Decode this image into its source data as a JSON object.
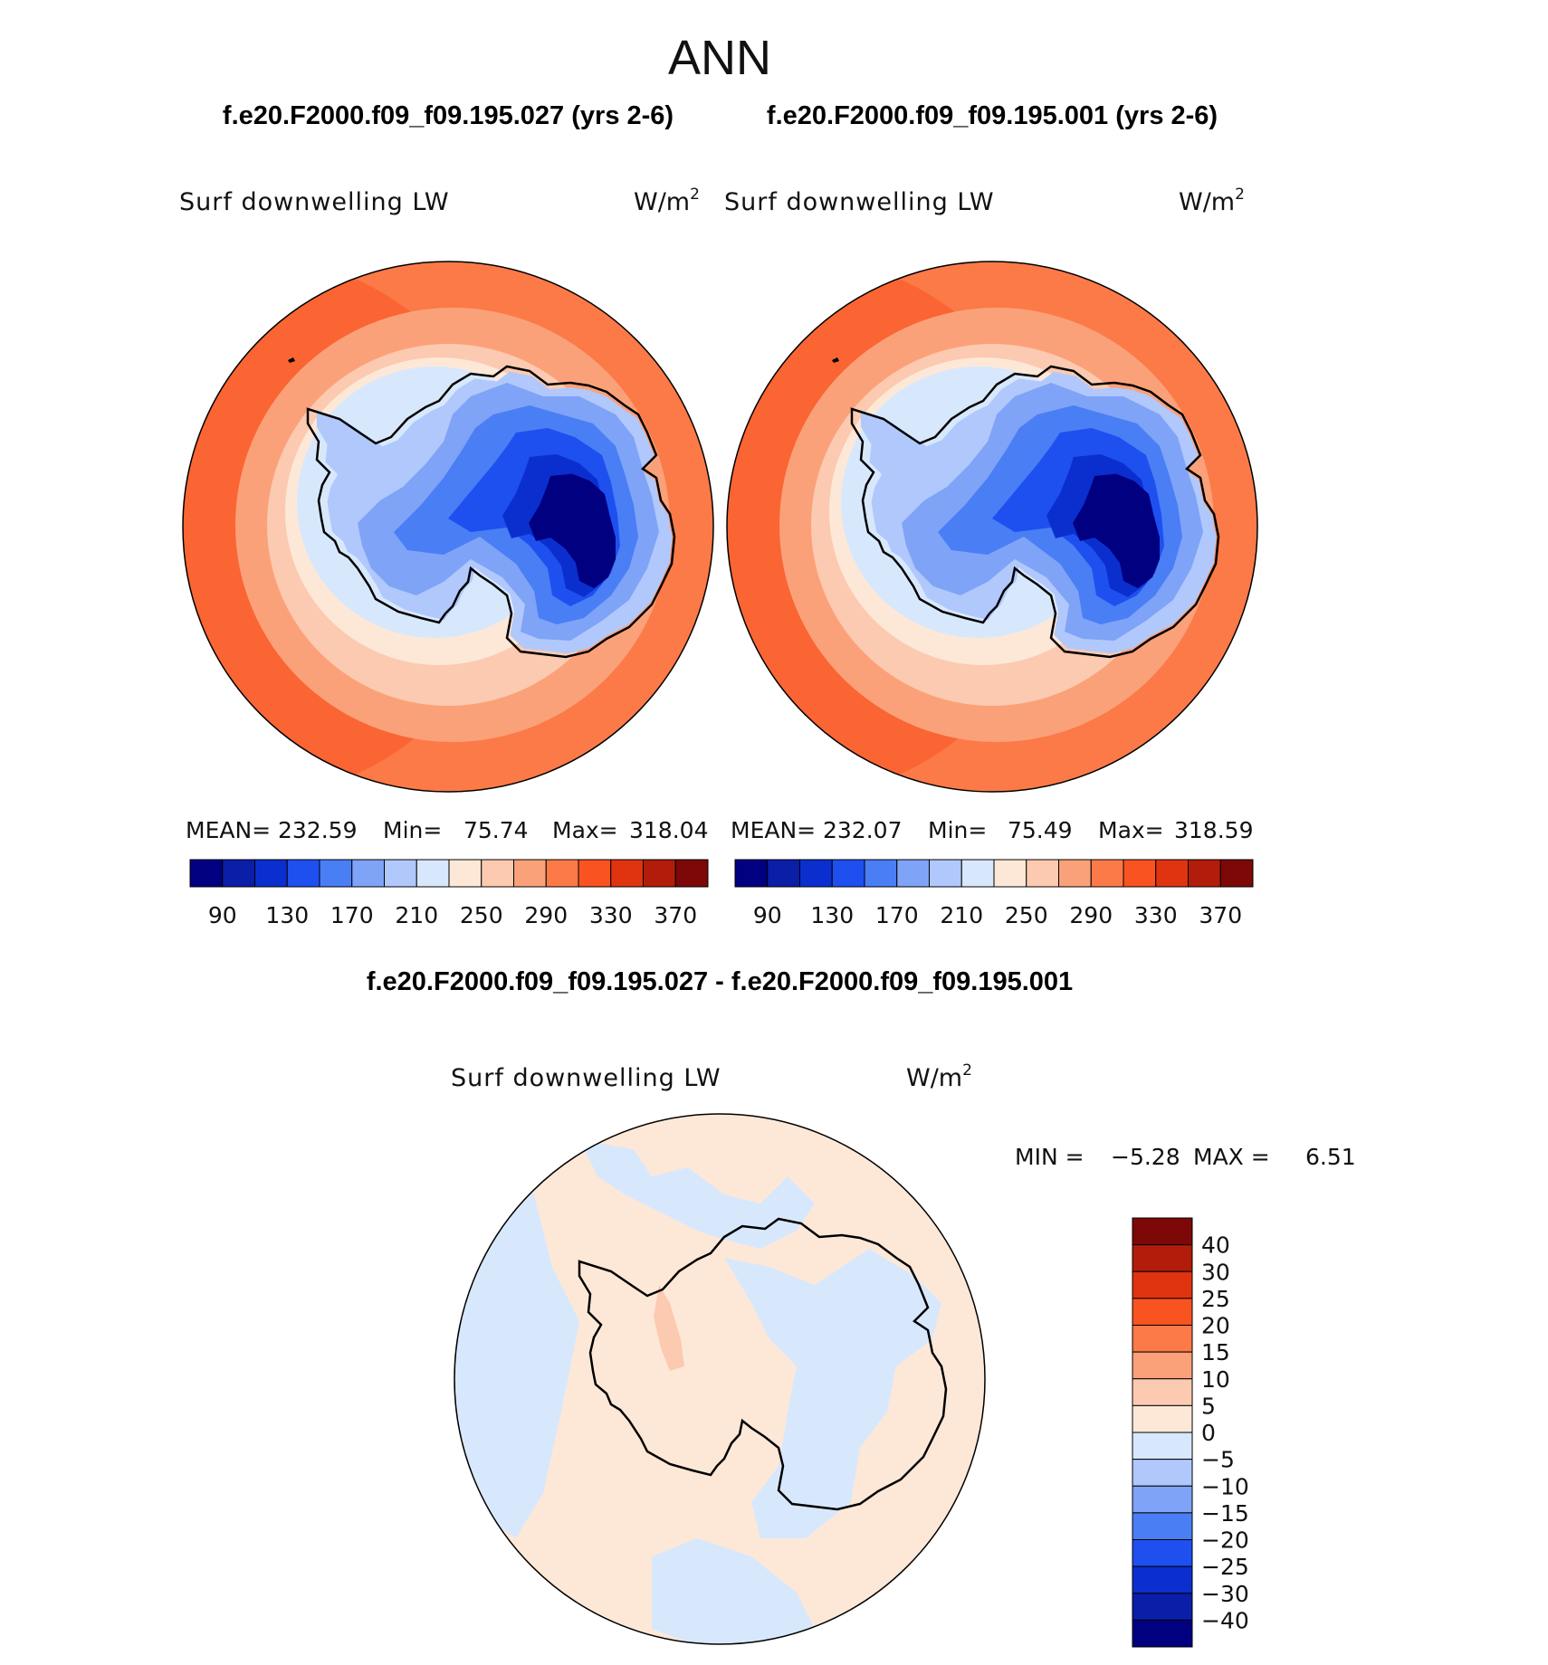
{
  "figure": {
    "title": "ANN",
    "panels": [
      {
        "case_title": "f.e20.F2000.f09_f09.195.027 (yrs 2-6)",
        "variable": "Surf downwelling LW",
        "units_base": "W/m",
        "units_exp": "2",
        "stats": {
          "mean_label": "MEAN=",
          "mean": "232.59",
          "min_label": "Min=",
          "min": "75.74",
          "max_label": "Max=",
          "max": "318.04"
        }
      },
      {
        "case_title": "f.e20.F2000.f09_f09.195.001 (yrs 2-6)",
        "variable": "Surf downwelling LW",
        "units_base": "W/m",
        "units_exp": "2",
        "stats": {
          "mean_label": "MEAN=",
          "mean": "232.07",
          "min_label": "Min=",
          "min": "75.49",
          "max_label": "Max=",
          "max": "318.59"
        }
      }
    ],
    "field_colorbar": {
      "colors": [
        "#000080",
        "#0a1ea8",
        "#0b2fcf",
        "#1e50f0",
        "#4a7ef5",
        "#7fa3f7",
        "#b0c8fb",
        "#d8e8fc",
        "#fde8d8",
        "#fccab0",
        "#fba17a",
        "#fb7a47",
        "#f95322",
        "#e03410",
        "#b21c0a",
        "#7d0808"
      ],
      "tick_labels": [
        "90",
        "130",
        "170",
        "210",
        "250",
        "290",
        "330",
        "370"
      ]
    },
    "diff_panel": {
      "title": "f.e20.F2000.f09_f09.195.027 - f.e20.F2000.f09_f09.195.001",
      "variable": "Surf downwelling LW",
      "units_base": "W/m",
      "units_exp": "2",
      "range_text": {
        "min_label": "MIN =",
        "min": "−5.28",
        "max_label": "MAX =",
        "max": "6.51"
      },
      "colorbar": {
        "colors_top_to_bottom": [
          "#7d0808",
          "#b21c0a",
          "#e03410",
          "#f95322",
          "#fb7a47",
          "#fba17a",
          "#fccab0",
          "#fde8d8",
          "#d8e8fc",
          "#b0c8fb",
          "#7fa3f7",
          "#4a7ef5",
          "#1e50f0",
          "#0b2fcf",
          "#0a1ea8",
          "#000080"
        ],
        "tick_labels_top_to_bottom": [
          "40",
          "30",
          "25",
          "20",
          "15",
          "10",
          "5",
          "0",
          "−5",
          "−10",
          "−15",
          "−20",
          "−25",
          "−30",
          "−40"
        ]
      }
    }
  }
}
